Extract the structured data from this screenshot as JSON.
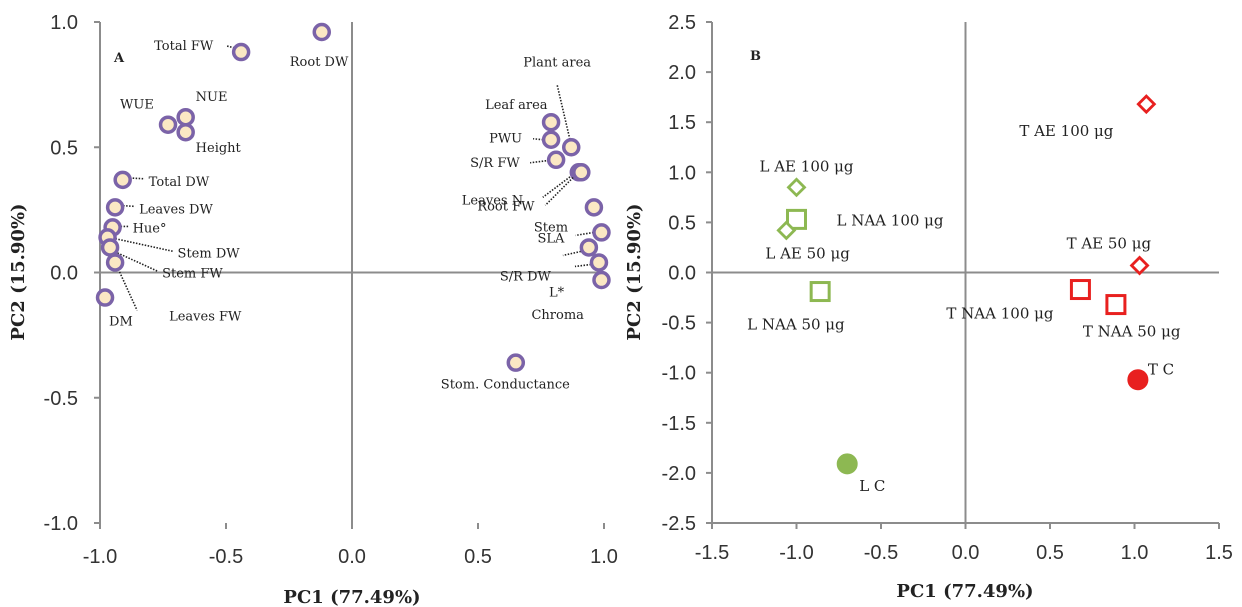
{
  "chart_data": [
    {
      "type": "scatter",
      "panel_label": "A",
      "xlabel": "PC1 (77.49%)",
      "ylabel": "PC2 (15.90%)",
      "xlim": [
        -1.0,
        1.0
      ],
      "ylim": [
        -1.0,
        1.0
      ],
      "xticks": [
        "-1.0",
        "-0.5",
        "0.0",
        "0.5",
        "1.0"
      ],
      "yticks": [
        "1.0",
        "0.5",
        "0.0",
        "-0.5",
        "-1.0"
      ],
      "grid": false,
      "marker_fill": "#fbe8c4",
      "marker_edge": "#7b63a8",
      "points": [
        {
          "label": "Total FW",
          "x": -0.44,
          "y": 0.88
        },
        {
          "label": "Root DW",
          "x": -0.12,
          "y": 0.96
        },
        {
          "label": "NUE",
          "x": -0.66,
          "y": 0.62
        },
        {
          "label": "WUE",
          "x": -0.73,
          "y": 0.59
        },
        {
          "label": "Height",
          "x": -0.66,
          "y": 0.56
        },
        {
          "label": "Total DW",
          "x": -0.91,
          "y": 0.37
        },
        {
          "label": "Leaves DW",
          "x": -0.94,
          "y": 0.26
        },
        {
          "label": "Hue°",
          "x": -0.95,
          "y": 0.18
        },
        {
          "label": "Stem DW",
          "x": -0.97,
          "y": 0.14
        },
        {
          "label": "Stem FW",
          "x": -0.96,
          "y": 0.1
        },
        {
          "label": "Leaves FW",
          "x": -0.94,
          "y": 0.04
        },
        {
          "label": "DM",
          "x": -0.98,
          "y": -0.1
        },
        {
          "label": "Plant area",
          "x": 0.87,
          "y": 0.5
        },
        {
          "label": "Leaf area",
          "x": 0.79,
          "y": 0.6
        },
        {
          "label": "PWU",
          "x": 0.79,
          "y": 0.53
        },
        {
          "label": "S/R FW",
          "x": 0.81,
          "y": 0.45
        },
        {
          "label": "Leaves N",
          "x": 0.9,
          "y": 0.4
        },
        {
          "label": "Root FW",
          "x": 0.91,
          "y": 0.4
        },
        {
          "label": "Stem",
          "x": 0.96,
          "y": 0.26
        },
        {
          "label": "SLA",
          "x": 0.99,
          "y": 0.16
        },
        {
          "label": "S/R DW",
          "x": 0.94,
          "y": 0.1
        },
        {
          "label": "L*",
          "x": 0.98,
          "y": 0.04
        },
        {
          "label": "Chroma",
          "x": 0.99,
          "y": -0.03
        },
        {
          "label": "Stom. Conductance",
          "x": 0.65,
          "y": -0.36
        }
      ]
    },
    {
      "type": "scatter",
      "panel_label": "B",
      "xlabel": "PC1 (77.49%)",
      "ylabel": "PC2 (15.90%)",
      "xlim": [
        -1.5,
        1.5
      ],
      "ylim": [
        -2.5,
        2.5
      ],
      "xticks": [
        "-1.5",
        "-1.0",
        "-0.5",
        "0.0",
        "0.5",
        "1.0",
        "1.5"
      ],
      "yticks": [
        "2.5",
        "2.0",
        "1.5",
        "1.0",
        "0.5",
        "0.0",
        "-0.5",
        "-1.0",
        "-1.5",
        "-2.0",
        "-2.5"
      ],
      "grid": false,
      "series_colors": {
        "L": "#8db852",
        "T": "#e8201f"
      },
      "points": [
        {
          "label": "T AE 100 μg",
          "x": 1.07,
          "y": 1.68,
          "marker": "diamond",
          "group": "T"
        },
        {
          "label": "T AE 50 μg",
          "x": 1.03,
          "y": 0.07,
          "marker": "diamond",
          "group": "T"
        },
        {
          "label": "T NAA 100 μg",
          "x": 0.68,
          "y": -0.17,
          "marker": "square",
          "group": "T"
        },
        {
          "label": "T NAA 50 μg",
          "x": 0.89,
          "y": -0.32,
          "marker": "square",
          "group": "T"
        },
        {
          "label": "T C",
          "x": 1.02,
          "y": -1.07,
          "marker": "circle",
          "group": "T"
        },
        {
          "label": "L AE 100 μg",
          "x": -1.0,
          "y": 0.85,
          "marker": "diamond",
          "group": "L"
        },
        {
          "label": "L NAA 100 μg",
          "x": -1.0,
          "y": 0.53,
          "marker": "square",
          "group": "L"
        },
        {
          "label": "L AE 50 μg",
          "x": -1.06,
          "y": 0.42,
          "marker": "diamond",
          "group": "L"
        },
        {
          "label": "L NAA 50 μg",
          "x": -0.86,
          "y": -0.19,
          "marker": "square",
          "group": "L"
        },
        {
          "label": "L C",
          "x": -0.7,
          "y": -1.91,
          "marker": "circle",
          "group": "L"
        }
      ]
    }
  ]
}
